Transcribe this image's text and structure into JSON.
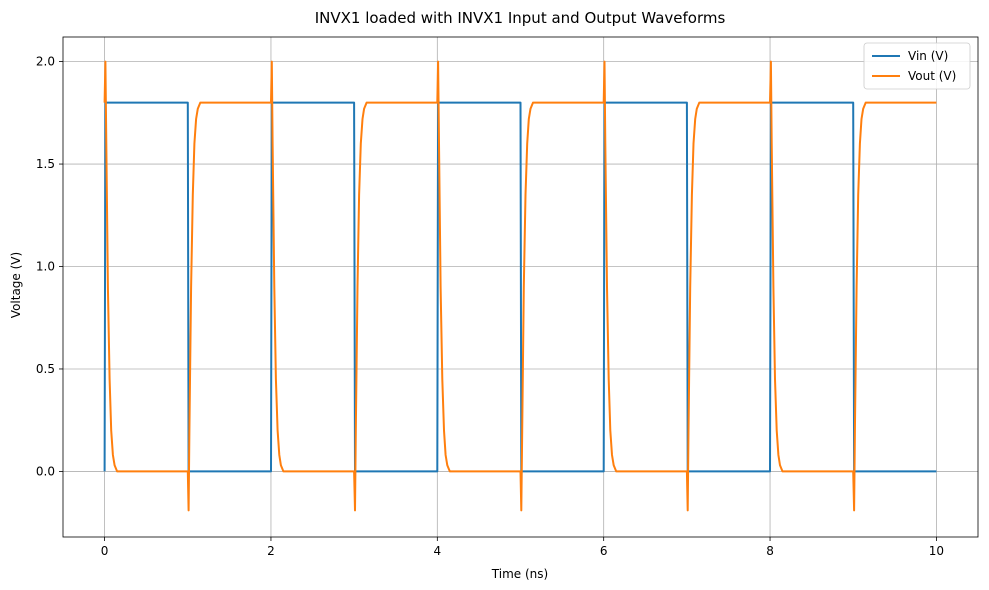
{
  "chart_data": {
    "type": "line",
    "title": "INVX1 loaded with INVX1 Input and Output Waveforms",
    "xlabel": "Time (ns)",
    "ylabel": "Voltage (V)",
    "xlim": [
      -0.5,
      10.5
    ],
    "ylim": [
      -0.32,
      2.12
    ],
    "xticks": [
      0,
      2,
      4,
      6,
      8,
      10
    ],
    "xtick_labels": [
      "0",
      "2",
      "4",
      "6",
      "8",
      "10"
    ],
    "yticks": [
      0.0,
      0.5,
      1.0,
      1.5,
      2.0
    ],
    "ytick_labels": [
      "0.0",
      "0.5",
      "1.0",
      "1.5",
      "2.0"
    ],
    "grid": true,
    "legend_position": "top-right",
    "series": [
      {
        "name": "Vin (V)",
        "color": "#1f77b4",
        "x": [
          0.0,
          0.01,
          1.0,
          1.01,
          2.0,
          2.01,
          3.0,
          3.01,
          4.0,
          4.01,
          5.0,
          5.01,
          6.0,
          6.01,
          7.0,
          7.01,
          8.0,
          8.01,
          9.0,
          9.01,
          10.0
        ],
        "y": [
          0.0,
          1.8,
          1.8,
          0.0,
          0.0,
          1.8,
          1.8,
          0.0,
          0.0,
          1.8,
          1.8,
          0.0,
          0.0,
          1.8,
          1.8,
          0.0,
          0.0,
          1.8,
          1.8,
          0.0,
          0.0
        ]
      },
      {
        "name": "Vout (V)",
        "color": "#ff7f0e",
        "x": [
          0.0,
          0.01,
          0.02,
          0.04,
          0.06,
          0.08,
          0.1,
          0.12,
          0.15,
          1.0,
          1.01,
          1.02,
          1.04,
          1.06,
          1.08,
          1.1,
          1.12,
          1.15,
          2.0,
          2.01,
          2.02,
          2.04,
          2.06,
          2.08,
          2.1,
          2.12,
          2.15,
          3.0,
          3.01,
          3.02,
          3.04,
          3.06,
          3.08,
          3.1,
          3.12,
          3.15,
          4.0,
          4.01,
          4.02,
          4.04,
          4.06,
          4.08,
          4.1,
          4.12,
          4.15,
          5.0,
          5.01,
          5.02,
          5.04,
          5.06,
          5.08,
          5.1,
          5.12,
          5.15,
          6.0,
          6.01,
          6.02,
          6.04,
          6.06,
          6.08,
          6.1,
          6.12,
          6.15,
          7.0,
          7.01,
          7.02,
          7.04,
          7.06,
          7.08,
          7.1,
          7.12,
          7.15,
          8.0,
          8.01,
          8.02,
          8.04,
          8.06,
          8.08,
          8.1,
          8.12,
          8.15,
          9.0,
          9.01,
          9.02,
          9.04,
          9.06,
          9.08,
          9.1,
          9.12,
          9.15,
          10.0
        ],
        "y": [
          1.8,
          2.0,
          1.6,
          0.9,
          0.45,
          0.2,
          0.08,
          0.03,
          0.0,
          0.0,
          -0.19,
          0.2,
          0.9,
          1.35,
          1.6,
          1.72,
          1.77,
          1.8,
          1.8,
          2.0,
          1.6,
          0.9,
          0.45,
          0.2,
          0.08,
          0.03,
          0.0,
          0.0,
          -0.19,
          0.2,
          0.9,
          1.35,
          1.6,
          1.72,
          1.77,
          1.8,
          1.8,
          2.0,
          1.6,
          0.9,
          0.45,
          0.2,
          0.08,
          0.03,
          0.0,
          0.0,
          -0.19,
          0.2,
          0.9,
          1.35,
          1.6,
          1.72,
          1.77,
          1.8,
          1.8,
          2.0,
          1.6,
          0.9,
          0.45,
          0.2,
          0.08,
          0.03,
          0.0,
          0.0,
          -0.19,
          0.2,
          0.9,
          1.35,
          1.6,
          1.72,
          1.77,
          1.8,
          1.8,
          2.0,
          1.6,
          0.9,
          0.45,
          0.2,
          0.08,
          0.03,
          0.0,
          0.0,
          -0.19,
          0.2,
          0.9,
          1.35,
          1.6,
          1.72,
          1.77,
          1.8,
          1.8
        ]
      }
    ]
  }
}
